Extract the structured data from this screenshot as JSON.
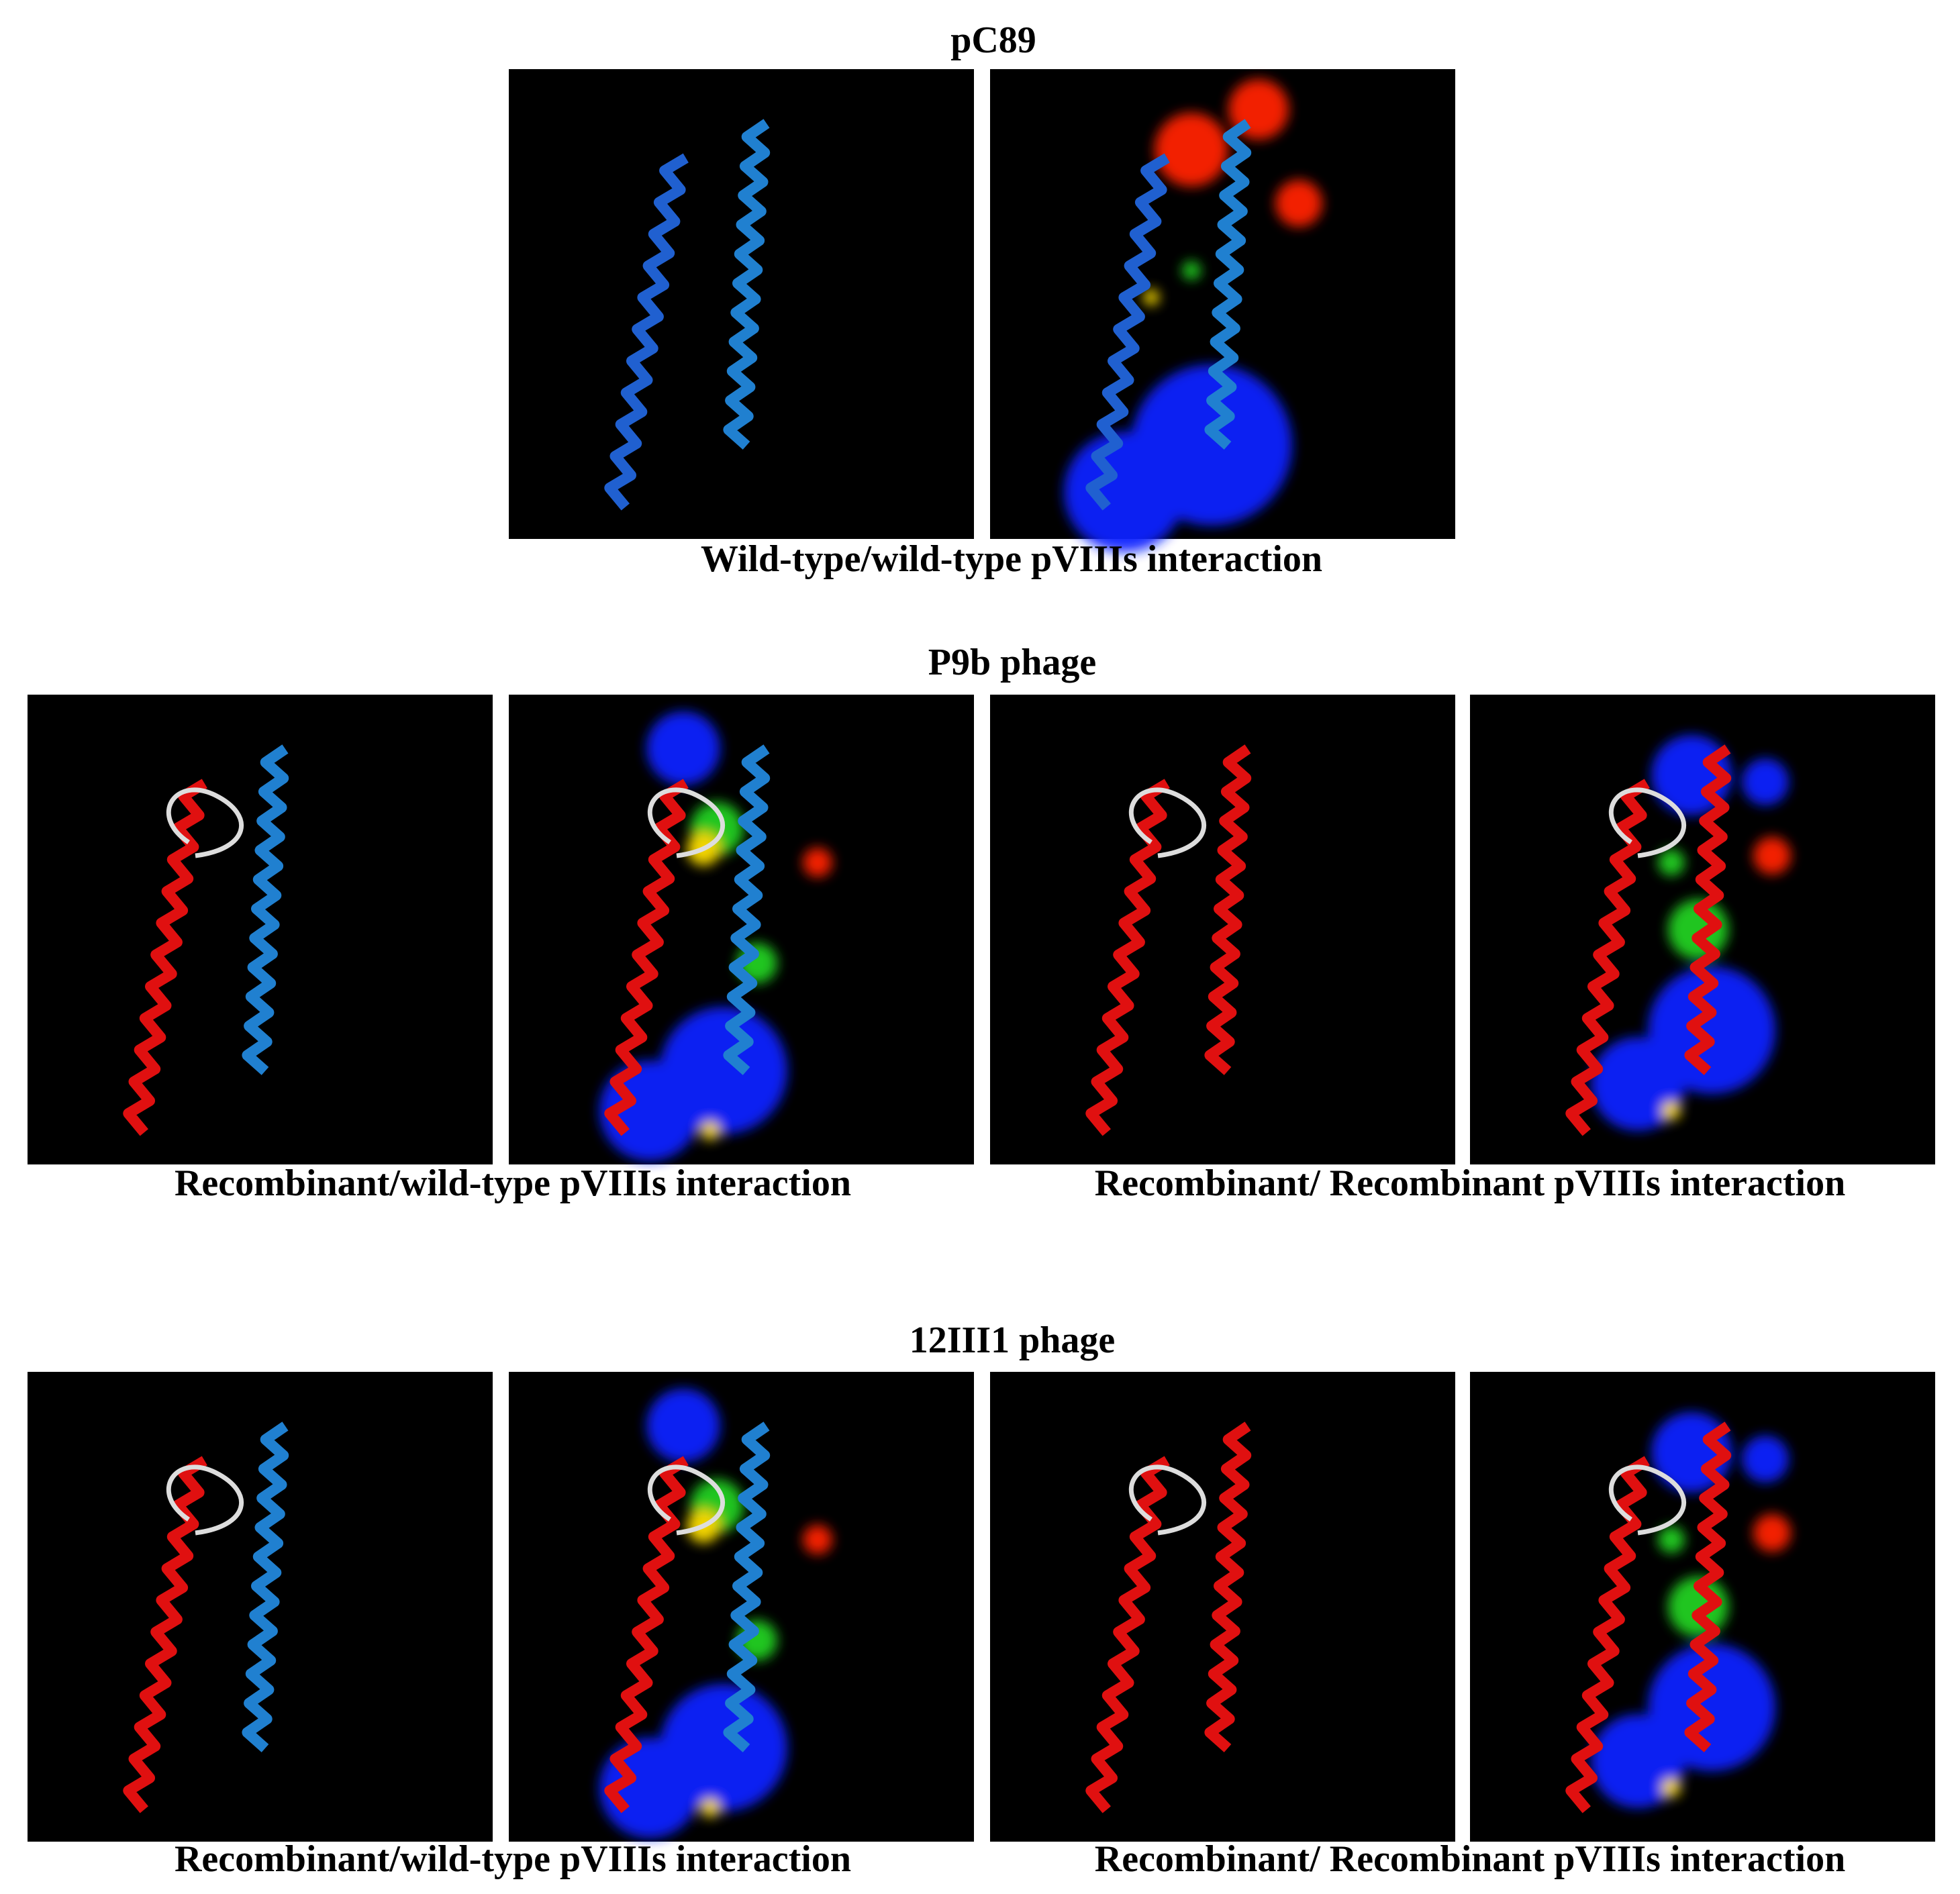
{
  "sections": [
    {
      "title": "pC89",
      "captions": [
        "Wild-type/wild-type pVIIIs interaction"
      ]
    },
    {
      "title": "P9b phage",
      "captions": [
        "Recombinant/wild-type pVIIIs interaction",
        "Recombinant/ Recombinant pVIIIs interaction"
      ]
    },
    {
      "title": "12III1 phage",
      "captions": [
        "Recombinant/wild-type pVIIIs interaction",
        "Recombinant/ Recombinant pVIIIs interaction"
      ]
    }
  ]
}
